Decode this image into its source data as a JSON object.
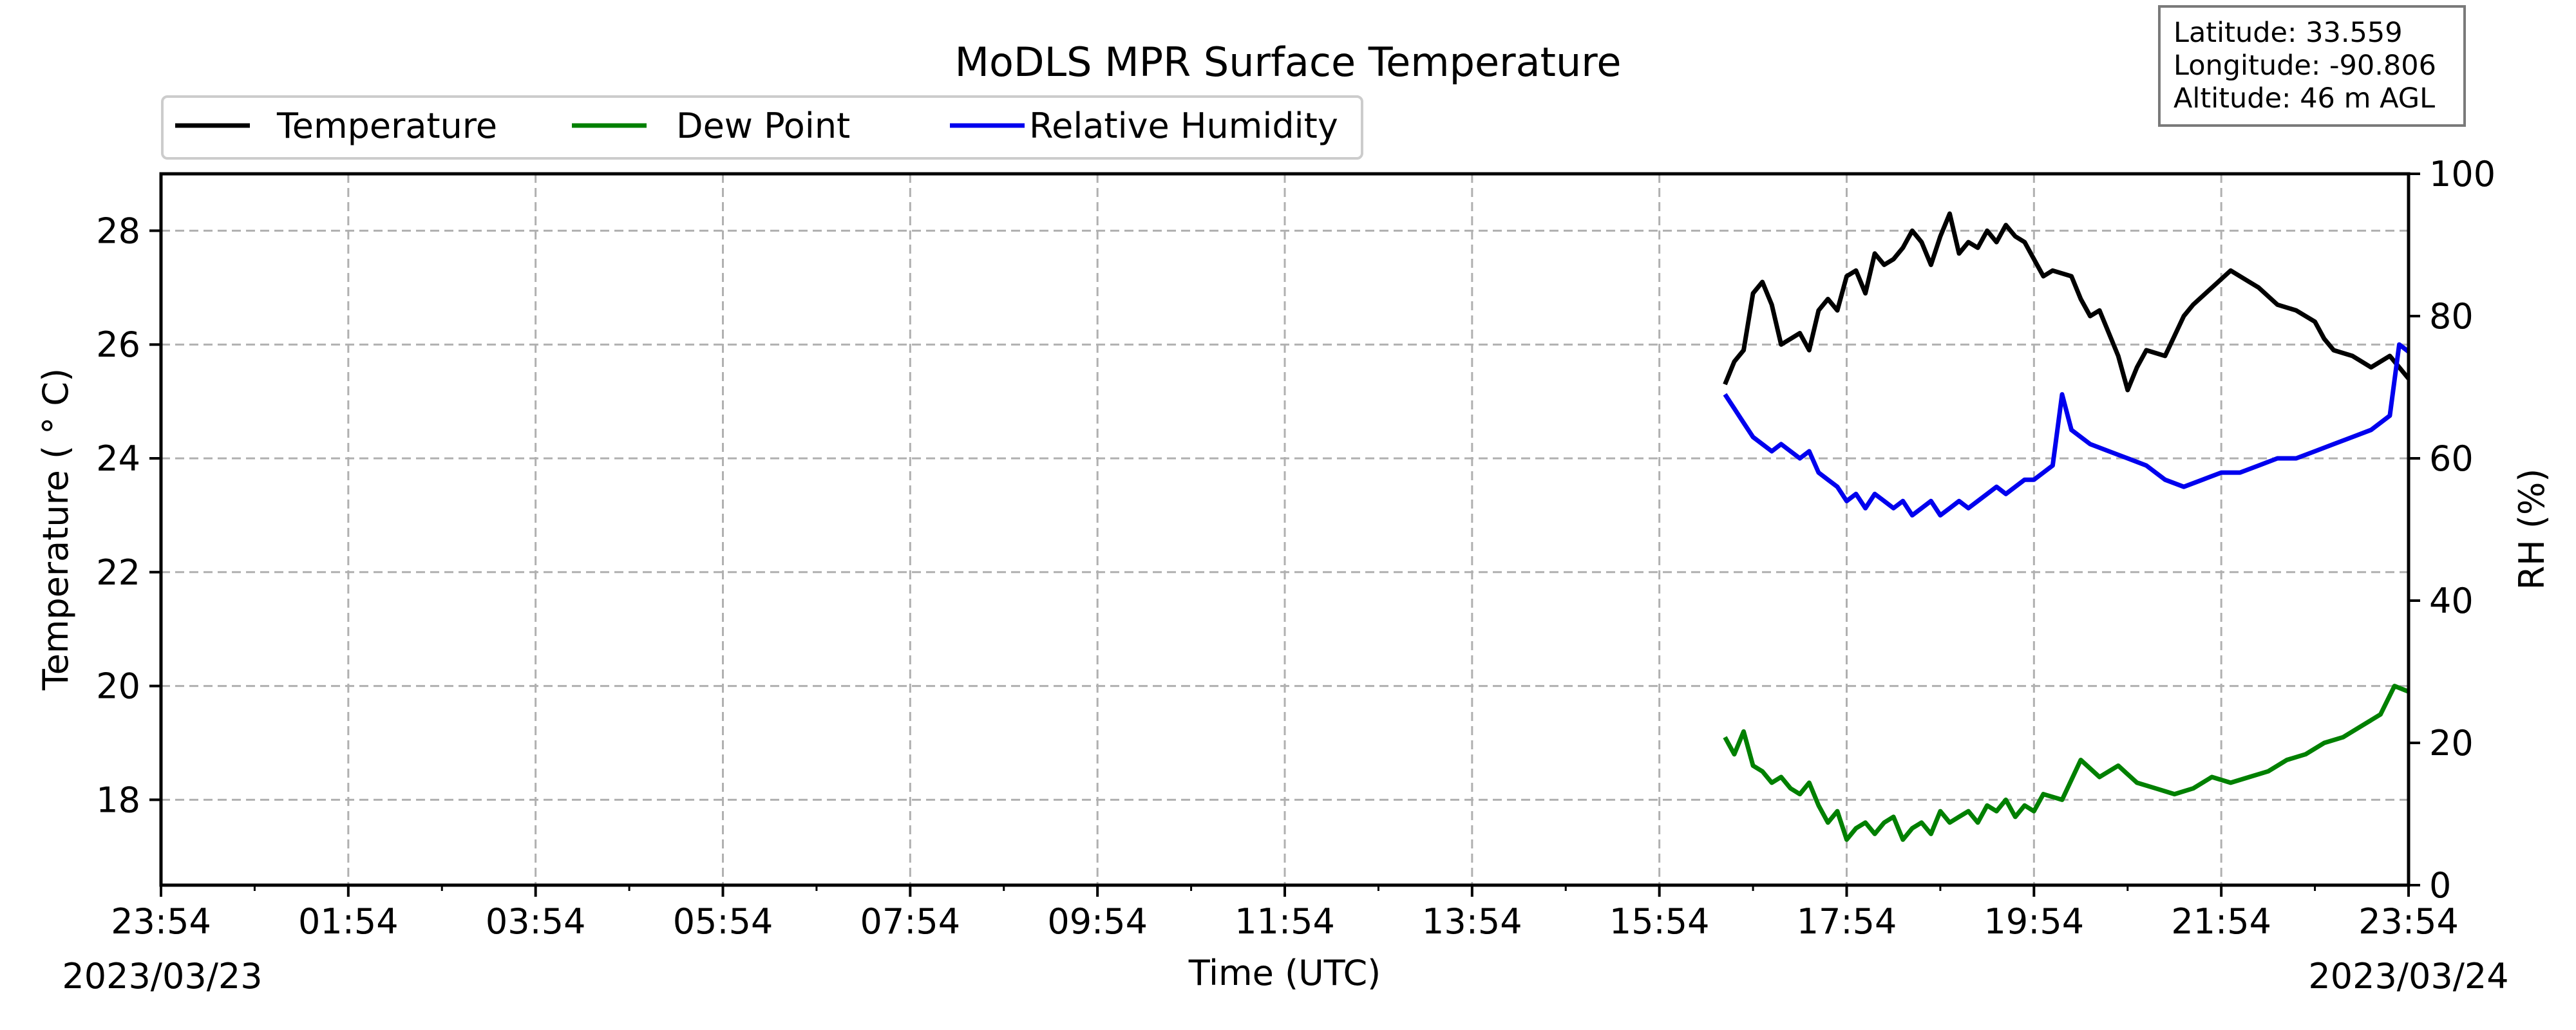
{
  "chart_data": {
    "type": "line",
    "title": "MoDLS MPR Surface Temperature",
    "xlabel": "Time (UTC)",
    "ylabel": "Temperature ( ° C)",
    "ylabel_right": "RH (%)",
    "x_tick_labels": [
      "23:54",
      "01:54",
      "03:54",
      "05:54",
      "07:54",
      "09:54",
      "11:54",
      "13:54",
      "15:54",
      "17:54",
      "19:54",
      "21:54",
      "23:54"
    ],
    "date_left": "2023/03/23",
    "date_right": "2023/03/24",
    "y_ticks": [
      18,
      20,
      22,
      24,
      26,
      28
    ],
    "y2_ticks": [
      0,
      20,
      40,
      60,
      80,
      100
    ],
    "ylim": [
      16.5,
      29
    ],
    "y2lim": [
      0,
      100
    ],
    "xlim_hours": [
      0,
      24
    ],
    "grid": true,
    "legend_position": "top-left",
    "info_box": [
      "Latitude: 33.559",
      "Longitude: -90.806",
      "Altitude: 46 m AGL"
    ],
    "series": [
      {
        "name": "Temperature",
        "axis": "left",
        "color": "#000000",
        "x": [
          16.7,
          16.8,
          16.9,
          17.0,
          17.1,
          17.2,
          17.3,
          17.4,
          17.5,
          17.6,
          17.7,
          17.8,
          17.9,
          18.0,
          18.1,
          18.2,
          18.3,
          18.4,
          18.5,
          18.6,
          18.7,
          18.8,
          18.9,
          19.0,
          19.1,
          19.2,
          19.3,
          19.4,
          19.5,
          19.6,
          19.7,
          19.8,
          19.9,
          20.0,
          20.1,
          20.2,
          20.4,
          20.5,
          20.6,
          20.7,
          20.9,
          21.0,
          21.1,
          21.2,
          21.4,
          21.6,
          21.7,
          21.9,
          22.1,
          22.3,
          22.4,
          22.6,
          22.8,
          23.0,
          23.1,
          23.2,
          23.4,
          23.6,
          23.8,
          24.0
        ],
        "y": [
          25.3,
          25.7,
          25.9,
          26.9,
          27.1,
          26.7,
          26.0,
          26.1,
          26.2,
          25.9,
          26.6,
          26.8,
          26.6,
          27.2,
          27.3,
          26.9,
          27.6,
          27.4,
          27.5,
          27.7,
          28.0,
          27.8,
          27.4,
          27.9,
          28.3,
          27.6,
          27.8,
          27.7,
          28.0,
          27.8,
          28.1,
          27.9,
          27.8,
          27.5,
          27.2,
          27.3,
          27.2,
          26.8,
          26.5,
          26.6,
          25.8,
          25.2,
          25.6,
          25.9,
          25.8,
          26.5,
          26.7,
          27.0,
          27.3,
          27.1,
          27.0,
          26.7,
          26.6,
          26.4,
          26.1,
          25.9,
          25.8,
          25.6,
          25.8,
          25.4
        ],
        "values": [
          25.3,
          25.7,
          25.9,
          26.9,
          27.1,
          26.7,
          26.0,
          26.1,
          26.2,
          25.9,
          26.6,
          26.8,
          26.6,
          27.2,
          27.3,
          26.9,
          27.6,
          27.4,
          27.5,
          27.7,
          28.0,
          27.8,
          27.4,
          27.9,
          28.3,
          27.6,
          27.8,
          27.7,
          28.0,
          27.8,
          28.1,
          27.9,
          27.8,
          27.5,
          27.2,
          27.3,
          27.2,
          26.8,
          26.5,
          26.6,
          25.8,
          25.2,
          25.6,
          25.9,
          25.8,
          26.5,
          26.7,
          27.0,
          27.3,
          27.1,
          27.0,
          26.7,
          26.6,
          26.4,
          26.1,
          25.9,
          25.8,
          25.6,
          25.8,
          25.4
        ]
      },
      {
        "name": "Dew Point",
        "axis": "left",
        "color": "#008000",
        "x": [
          16.7,
          16.8,
          16.9,
          17.0,
          17.1,
          17.2,
          17.3,
          17.4,
          17.5,
          17.6,
          17.7,
          17.8,
          17.9,
          18.0,
          18.1,
          18.2,
          18.3,
          18.4,
          18.5,
          18.6,
          18.7,
          18.8,
          18.9,
          19.0,
          19.1,
          19.2,
          19.3,
          19.4,
          19.5,
          19.6,
          19.7,
          19.8,
          19.9,
          20.0,
          20.1,
          20.3,
          20.5,
          20.7,
          20.9,
          21.1,
          21.3,
          21.5,
          21.7,
          21.9,
          22.1,
          22.3,
          22.5,
          22.7,
          22.9,
          23.1,
          23.3,
          23.5,
          23.7,
          23.85,
          24.0
        ],
        "y": [
          19.1,
          18.8,
          19.2,
          18.6,
          18.5,
          18.3,
          18.4,
          18.2,
          18.1,
          18.3,
          17.9,
          17.6,
          17.8,
          17.3,
          17.5,
          17.6,
          17.4,
          17.6,
          17.7,
          17.3,
          17.5,
          17.6,
          17.4,
          17.8,
          17.6,
          17.7,
          17.8,
          17.6,
          17.9,
          17.8,
          18.0,
          17.7,
          17.9,
          17.8,
          18.1,
          18.0,
          18.7,
          18.4,
          18.6,
          18.3,
          18.2,
          18.1,
          18.2,
          18.4,
          18.3,
          18.4,
          18.5,
          18.7,
          18.8,
          19.0,
          19.1,
          19.3,
          19.5,
          20.0,
          19.9
        ],
        "values": [
          19.1,
          18.8,
          19.2,
          18.6,
          18.5,
          18.3,
          18.4,
          18.2,
          18.1,
          18.3,
          17.9,
          17.6,
          17.8,
          17.3,
          17.5,
          17.6,
          17.4,
          17.6,
          17.7,
          17.3,
          17.5,
          17.6,
          17.4,
          17.8,
          17.6,
          17.7,
          17.8,
          17.6,
          17.9,
          17.8,
          18.0,
          17.7,
          17.9,
          17.8,
          18.1,
          18.0,
          18.7,
          18.4,
          18.6,
          18.3,
          18.2,
          18.1,
          18.2,
          18.4,
          18.3,
          18.4,
          18.5,
          18.7,
          18.8,
          19.0,
          19.1,
          19.3,
          19.5,
          20.0,
          19.9
        ]
      },
      {
        "name": "Relative Humidity",
        "axis": "right",
        "color": "#0000ee",
        "x": [
          16.7,
          16.8,
          16.9,
          17.0,
          17.1,
          17.2,
          17.3,
          17.4,
          17.5,
          17.6,
          17.7,
          17.8,
          17.9,
          18.0,
          18.1,
          18.2,
          18.3,
          18.4,
          18.5,
          18.6,
          18.7,
          18.8,
          18.9,
          19.0,
          19.1,
          19.2,
          19.3,
          19.4,
          19.5,
          19.6,
          19.7,
          19.8,
          19.9,
          20.0,
          20.1,
          20.2,
          20.3,
          20.4,
          20.6,
          20.8,
          21.0,
          21.2,
          21.4,
          21.6,
          21.8,
          22.0,
          22.2,
          22.4,
          22.6,
          22.8,
          23.0,
          23.2,
          23.4,
          23.6,
          23.8,
          23.9,
          24.0
        ],
        "y": [
          69,
          67,
          65,
          63,
          62,
          61,
          62,
          61,
          60,
          61,
          58,
          57,
          56,
          54,
          55,
          53,
          55,
          54,
          53,
          54,
          52,
          53,
          54,
          52,
          53,
          54,
          53,
          54,
          55,
          56,
          55,
          56,
          57,
          57,
          58,
          59,
          69,
          64,
          62,
          61,
          60,
          59,
          57,
          56,
          57,
          58,
          58,
          59,
          60,
          60,
          61,
          62,
          63,
          64,
          66,
          76,
          75
        ],
        "values": [
          69,
          67,
          65,
          63,
          62,
          61,
          62,
          61,
          60,
          61,
          58,
          57,
          56,
          54,
          55,
          53,
          55,
          54,
          53,
          54,
          52,
          53,
          54,
          52,
          53,
          54,
          53,
          54,
          55,
          56,
          55,
          56,
          57,
          57,
          58,
          59,
          69,
          64,
          62,
          61,
          60,
          59,
          57,
          56,
          57,
          58,
          58,
          59,
          60,
          60,
          61,
          62,
          63,
          64,
          66,
          76,
          75
        ]
      }
    ]
  }
}
